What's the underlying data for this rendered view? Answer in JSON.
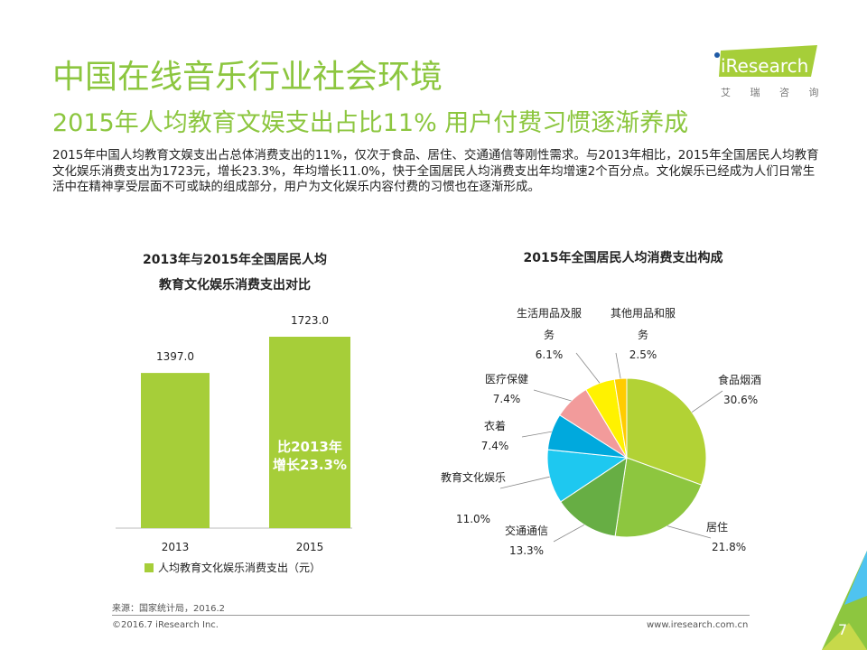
{
  "header": {
    "title": "中国在线音乐行业社会环境",
    "subtitle": "2015年人均教育文娱支出占比11%  用户付费习惯逐渐养成",
    "logo_text": "iResearch",
    "logo_cn": "艾 瑞 咨 询"
  },
  "body_text": "2015年中国人均教育文娱支出占总体消费支出的11%，仅次于食品、居住、交通通信等刚性需求。与2013年相比，2015年全国居民人均教育文化娱乐消费支出为1723元，增长23.3%，年均增长11.0%，快于全国居民人均消费支出年均增速2个百分点。文化娱乐已经成为人们日常生活中在精神享受层面不可或缺的组成部分，用户为文化娱乐内容付费的习惯也在逐渐形成。",
  "chart_data": [
    {
      "type": "bar",
      "title_line1": "2013年与2015年全国居民人均",
      "title_line2": "教育文化娱乐消费支出对比",
      "categories": [
        "2013",
        "2015"
      ],
      "values": [
        1397.0,
        1723.0
      ],
      "value_labels": [
        "1397.0",
        "1723.0"
      ],
      "legend": "人均教育文化娱乐消费支出（元）",
      "annotation_line1": "比2013年",
      "annotation_line2": "增长23.3%",
      "color": "#a6ce39",
      "ylim": [
        0,
        1800
      ]
    },
    {
      "type": "pie",
      "title": "2015年全国居民人均消费支出构成",
      "slices": [
        {
          "label": "食品烟酒",
          "value": 30.6,
          "value_label": "30.6%",
          "color": "#b2d235"
        },
        {
          "label": "居住",
          "value": 21.8,
          "value_label": "21.8%",
          "color": "#8dc63f"
        },
        {
          "label": "交通通信",
          "value": 13.3,
          "value_label": "13.3%",
          "color": "#67ae44"
        },
        {
          "label": "教育文化娱乐",
          "value": 11.0,
          "value_label": "11.0%",
          "color": "#1ec8f0"
        },
        {
          "label": "衣着",
          "value": 7.4,
          "value_label": "7.4%",
          "color": "#00a9dd"
        },
        {
          "label": "医疗保健",
          "value": 7.4,
          "value_label": "7.4%",
          "color": "#f29b9b"
        },
        {
          "label": "生活用品及服务",
          "value": 6.1,
          "value_label": "6.1%",
          "color": "#fff200"
        },
        {
          "label": "其他用品和服务",
          "value": 2.5,
          "value_label": "2.5%",
          "color": "#ffcc00"
        }
      ]
    }
  ],
  "footer": {
    "source": "来源：国家统计局，2016.2",
    "copyright": "©2016.7 iResearch Inc.",
    "website": "www.iresearch.com.cn",
    "page": "7"
  }
}
